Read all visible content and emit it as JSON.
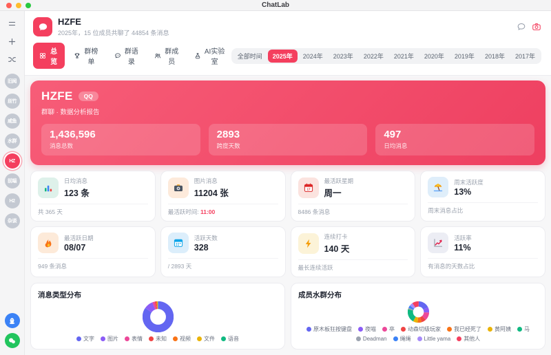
{
  "titlebar": {
    "app_title": "ChatLab"
  },
  "sidebar": {
    "top_buttons": [
      {
        "id": "menu"
      },
      {
        "id": "add"
      },
      {
        "id": "compare"
      }
    ],
    "groups": [
      {
        "label": "旧闻",
        "active": false
      },
      {
        "label": "丝竹",
        "active": false
      },
      {
        "label": "咸鱼",
        "active": false
      },
      {
        "label": "水群",
        "active": false
      },
      {
        "label": "HZ",
        "active": true
      },
      {
        "label": "前端",
        "active": false
      },
      {
        "label": "H2",
        "active": false
      },
      {
        "label": "杂谈",
        "active": false
      }
    ],
    "platforms": [
      {
        "id": "qq",
        "icon": "qq",
        "color": "#3b82f6"
      },
      {
        "id": "wechat",
        "icon": "wechat",
        "color": "#22c55e"
      }
    ]
  },
  "header": {
    "group_name": "HZFE",
    "subtitle": "2025年，15 位成员共聊了 44854 条消息",
    "actions": [
      {
        "id": "feedback",
        "icon": "comment"
      },
      {
        "id": "screenshot",
        "icon": "camera"
      }
    ],
    "tabs": [
      {
        "key": "overview",
        "label": "总览",
        "icon": "overview",
        "active": true
      },
      {
        "key": "ranking",
        "label": "群榜单",
        "icon": "trophy",
        "active": false
      },
      {
        "key": "quotes",
        "label": "群语录",
        "icon": "quote",
        "active": false
      },
      {
        "key": "members",
        "label": "群成员",
        "icon": "users",
        "active": false
      },
      {
        "key": "ai-lab",
        "label": "AI实验室",
        "icon": "flask",
        "active": false
      }
    ],
    "time_filters": {
      "options": [
        "全部时间",
        "2025年",
        "2024年",
        "2023年",
        "2022年",
        "2021年",
        "2020年",
        "2019年",
        "2018年",
        "2017年"
      ],
      "active_index": 1
    }
  },
  "hero": {
    "title": "HZFE",
    "badge": "QQ",
    "subtitle": "群聊 · 数据分析报告",
    "stats": [
      {
        "value": "1,436,596",
        "label": "消息总数"
      },
      {
        "value": "2893",
        "label": "跨度天数"
      },
      {
        "value": "497",
        "label": "日均消息"
      }
    ]
  },
  "stat_cards": [
    {
      "icon": "bar-chart",
      "tile_bg": "#def1ea",
      "label": "日均消息",
      "value": "123 条",
      "footer": "共 365 天"
    },
    {
      "icon": "camera-photo",
      "tile_bg": "#fdeadb",
      "label": "图片消息",
      "value": "11204 张",
      "footer": "最活跃时间: ",
      "footer_highlight": "11:00"
    },
    {
      "icon": "calendar",
      "tile_bg": "#fbe3df",
      "label": "最活跃星期",
      "value": "周一",
      "footer": "8486 条消息"
    },
    {
      "icon": "beach",
      "tile_bg": "#dfeefa",
      "label": "周末活跃度",
      "value": "13%",
      "footer": "周末消息占比"
    },
    {
      "icon": "fire",
      "tile_bg": "#fdead9",
      "label": "最活跃日期",
      "value": "08/07",
      "footer": "949 条消息"
    },
    {
      "icon": "calendar-days",
      "tile_bg": "#dceefb",
      "label": "活跃天数",
      "value": "328",
      "footer": "/ 2893 天"
    },
    {
      "icon": "bolt",
      "tile_bg": "#fcf3d8",
      "label": "连续打卡",
      "value": "140 天",
      "footer": "最长连续活跃"
    },
    {
      "icon": "trend-up",
      "tile_bg": "#ecedf4",
      "label": "活跃率",
      "value": "11%",
      "footer": "有消息的天数占比"
    }
  ],
  "chart_data": [
    {
      "type": "pie",
      "variant": "donut",
      "title": "消息类型分布",
      "labels": [
        "文字",
        "图片",
        "表情",
        "未知",
        "视频",
        "文件",
        "语音"
      ],
      "values": [
        84.5,
        9.5,
        2.5,
        1.5,
        1,
        0.6,
        0.4
      ],
      "values_unit": "percent (estimated from arc angles)",
      "colors": [
        "#6366f1",
        "#8b5cf6",
        "#ec4899",
        "#ef4444",
        "#f97316",
        "#eab308",
        "#10b981"
      ],
      "legend_position": "bottom"
    },
    {
      "type": "pie",
      "variant": "donut",
      "title": "成员水群分布",
      "labels": [
        "原木板狂按键盘",
        "夜喵",
        "卒",
        "动森切级玩家",
        "我已经死了",
        "黄阿姨",
        "马",
        "Deadman",
        "绳绳",
        "Little yama",
        "其他人"
      ],
      "values": [
        17,
        9,
        12,
        7,
        6,
        7,
        21,
        2,
        4,
        5,
        10
      ],
      "values_unit": "percent (estimated from arc angles)",
      "colors": [
        "#6366f1",
        "#8b5cf6",
        "#ec4899",
        "#ef4444",
        "#f97316",
        "#eab308",
        "#10b981",
        "#9ca3af",
        "#3b82f6",
        "#a78bfa",
        "#f43f5e"
      ],
      "legend_position": "bottom"
    }
  ]
}
